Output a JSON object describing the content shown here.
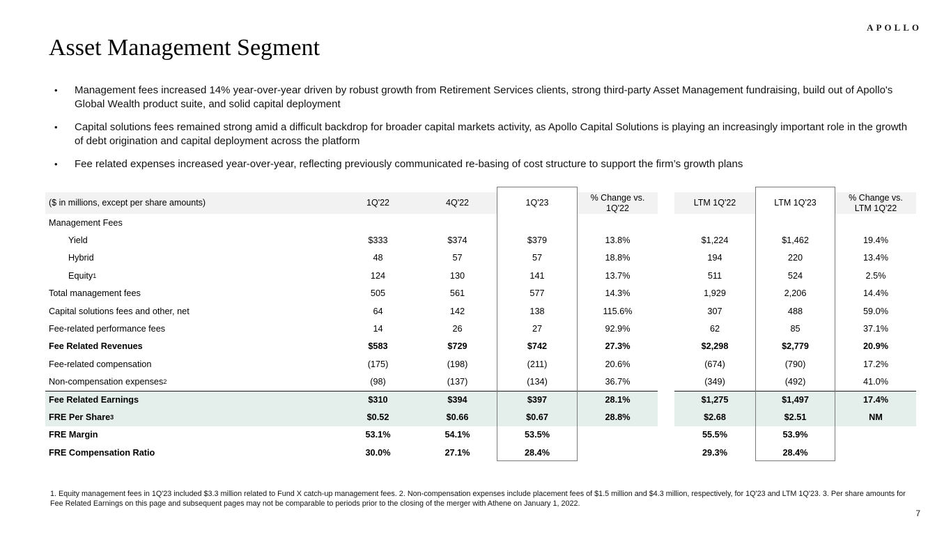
{
  "brand": {
    "logo_text": "APOLLO"
  },
  "page": {
    "title": "Asset Management Segment",
    "page_number": "7"
  },
  "bullets": {
    "marker": "•",
    "items": [
      "Management fees increased 14% year-over-year driven by robust growth from Retirement Services clients, strong third-party Asset Management fundraising, build out of Apollo's Global Wealth product suite, and solid capital deployment",
      "Capital solutions fees remained strong amid a difficult backdrop for broader capital markets activity, as Apollo Capital Solutions is playing an increasingly important role in the growth of debt origination and capital deployment across the platform",
      "Fee related expenses increased year-over-year, reflecting previously communicated re-basing of cost structure to support the firm’s growth plans"
    ]
  },
  "table": {
    "unit_note": "($ in millions, except per share amounts)",
    "columns": [
      "1Q'22",
      "4Q'22",
      "1Q'23",
      "% Change vs. 1Q'22",
      "LTM 1Q'22",
      "LTM 1Q'23",
      "% Change vs. LTM 1Q'22"
    ],
    "rows": [
      {
        "label": "Management Fees",
        "values": [
          "",
          "",
          "",
          "",
          "",
          "",
          ""
        ]
      },
      {
        "label": "Yield",
        "indent": true,
        "values": [
          "$333",
          "$374",
          "$379",
          "13.8%",
          "$1,224",
          "$1,462",
          "19.4%"
        ]
      },
      {
        "label": "Hybrid",
        "indent": true,
        "values": [
          "48",
          "57",
          "57",
          "18.8%",
          "194",
          "220",
          "13.4%"
        ]
      },
      {
        "label": "Equity",
        "sup": "1",
        "indent": true,
        "values": [
          "124",
          "130",
          "141",
          "13.7%",
          "511",
          "524",
          "2.5%"
        ]
      },
      {
        "label": "Total management fees",
        "values": [
          "505",
          "561",
          "577",
          "14.3%",
          "1,929",
          "2,206",
          "14.4%"
        ]
      },
      {
        "label": "Capital solutions fees and other, net",
        "values": [
          "64",
          "142",
          "138",
          "115.6%",
          "307",
          "488",
          "59.0%"
        ]
      },
      {
        "label": "Fee-related performance fees",
        "values": [
          "14",
          "26",
          "27",
          "92.9%",
          "62",
          "85",
          "37.1%"
        ]
      },
      {
        "label": "Fee Related Revenues",
        "bold": true,
        "values": [
          "$583",
          "$729",
          "$742",
          "27.3%",
          "$2,298",
          "$2,779",
          "20.9%"
        ]
      },
      {
        "label": "Fee-related compensation",
        "values": [
          "(175)",
          "(198)",
          "(211)",
          "20.6%",
          "(674)",
          "(790)",
          "17.2%"
        ]
      },
      {
        "label": "Non-compensation expenses",
        "sup": "2",
        "values": [
          "(98)",
          "(137)",
          "(134)",
          "36.7%",
          "(349)",
          "(492)",
          "41.0%"
        ]
      },
      {
        "label": "Fee Related Earnings",
        "bold": true,
        "highlight": true,
        "topline": true,
        "values": [
          "$310",
          "$394",
          "$397",
          "28.1%",
          "$1,275",
          "$1,497",
          "17.4%"
        ]
      },
      {
        "label": "FRE Per Share",
        "sup": "3",
        "bold": true,
        "highlight": true,
        "values": [
          "$0.52",
          "$0.66",
          "$0.67",
          "28.8%",
          "$2.68",
          "$2.51",
          "NM"
        ]
      },
      {
        "label": "FRE Margin",
        "bold": true,
        "values": [
          "53.1%",
          "54.1%",
          "53.5%",
          "",
          "55.5%",
          "53.9%",
          ""
        ]
      },
      {
        "label": "FRE Compensation Ratio",
        "bold": true,
        "values": [
          "30.0%",
          "27.1%",
          "28.4%",
          "",
          "29.3%",
          "28.4%",
          ""
        ]
      }
    ]
  },
  "footnote": "1. Equity management fees in 1Q'23 included $3.3 million related to Fund X catch-up management fees. 2. Non-compensation expenses include placement fees of $1.5 million and $4.3 million, respectively, for 1Q'23 and LTM 1Q'23. 3. Per share amounts for Fee Related Earnings on this page and subsequent pages may not be comparable to periods prior to the closing of the merger with Athene on January 1, 2022.",
  "colors": {
    "header_band": "#f2f2f2",
    "highlight_row": "#e4eeea",
    "column_box_border": "#7a7a7a"
  }
}
